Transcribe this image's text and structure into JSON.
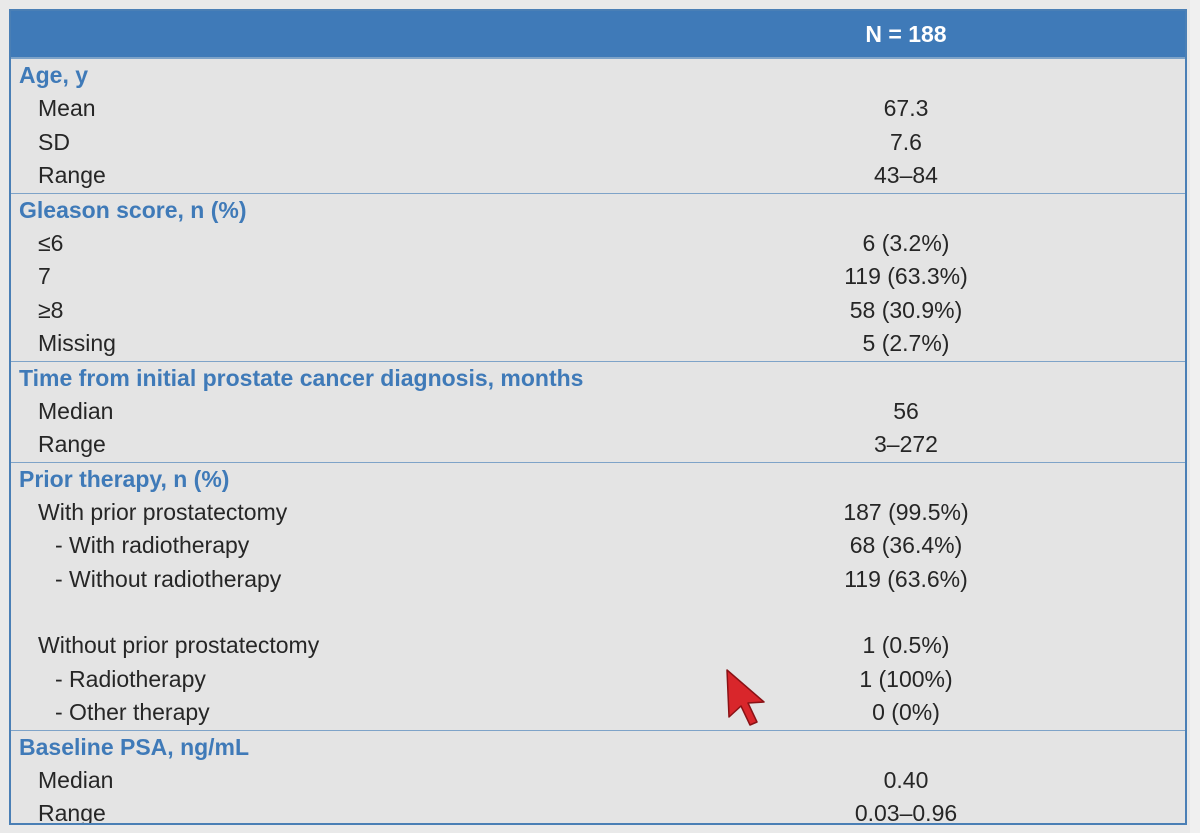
{
  "table": {
    "header": "N = 188",
    "sections": [
      {
        "title": "Age, y",
        "rows": [
          {
            "label": "Mean",
            "value": "67.3"
          },
          {
            "label": "SD",
            "value": "7.6"
          },
          {
            "label": "Range",
            "value": "43–84"
          }
        ]
      },
      {
        "title": "Gleason score, n (%)",
        "rows": [
          {
            "label": "≤6",
            "value": "6 (3.2%)"
          },
          {
            "label": "7",
            "value": "119 (63.3%)"
          },
          {
            "label": "≥8",
            "value": "58 (30.9%)"
          },
          {
            "label": "Missing",
            "value": "5 (2.7%)"
          }
        ]
      },
      {
        "title": "Time from initial prostate cancer diagnosis, months",
        "rows": [
          {
            "label": "Median",
            "value": "56"
          },
          {
            "label": "Range",
            "value": "3–272"
          }
        ]
      },
      {
        "title": "Prior therapy, n (%)",
        "rows": [
          {
            "label": "With prior prostatectomy",
            "value": "187 (99.5%)"
          },
          {
            "label": "- With radiotherapy",
            "value": "68 (36.4%)"
          },
          {
            "label": "- Without radiotherapy",
            "value": "119 (63.6%)"
          },
          {
            "label": "Without prior prostatectomy",
            "value": "1 (0.5%)"
          },
          {
            "label": "- Radiotherapy",
            "value": "1 (100%)"
          },
          {
            "label": "- Other therapy",
            "value": "0 (0%)"
          }
        ]
      },
      {
        "title": "Baseline PSA, ng/mL",
        "rows": [
          {
            "label": "Median",
            "value": "0.40"
          },
          {
            "label": "Range",
            "value": "0.03–0.96"
          }
        ]
      }
    ]
  },
  "cursor": {
    "icon": "pointer-cursor-icon",
    "color": "#d9262b"
  }
}
